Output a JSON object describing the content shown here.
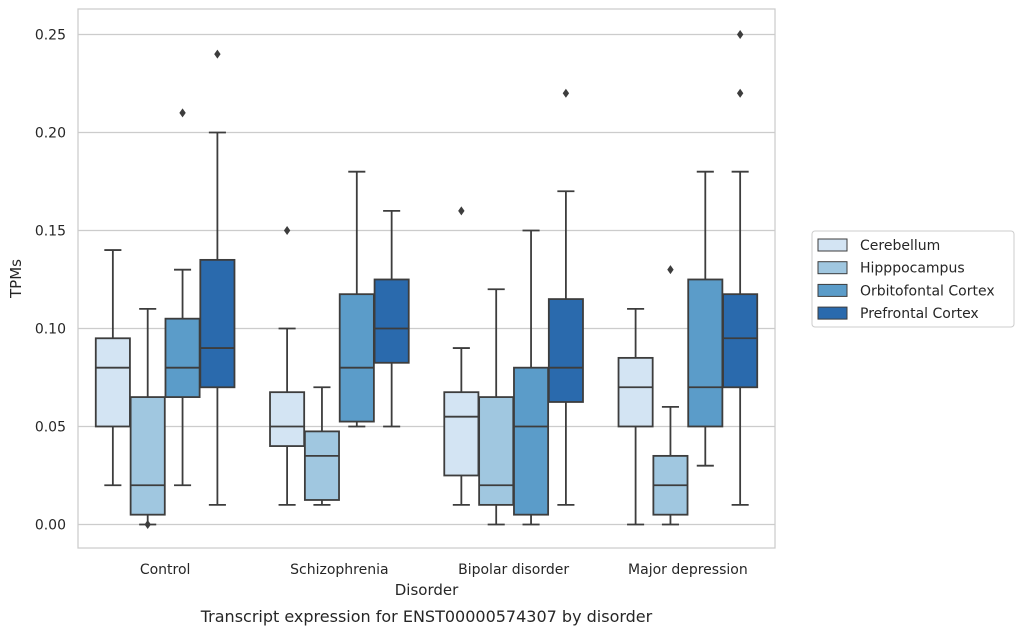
{
  "chart_data": {
    "type": "box",
    "caption": "Transcript expression for ENST00000574307 by disorder",
    "xlabel": "Disorder",
    "ylabel": "TPMs",
    "ylim": [
      -0.012,
      0.263
    ],
    "yticks": [
      0.0,
      0.05,
      0.1,
      0.15,
      0.2,
      0.25
    ],
    "ytick_labels": [
      "0.00",
      "0.05",
      "0.10",
      "0.15",
      "0.20",
      "0.25"
    ],
    "grid": "horizontal",
    "legend_position": "right",
    "categories": [
      "Control",
      "Schizophrenia",
      "Bipolar disorder",
      "Major depression"
    ],
    "series": [
      {
        "name": "Cerebellum",
        "color": "#d3e4f3",
        "boxes": [
          {
            "whislo": 0.02,
            "q1": 0.05,
            "med": 0.08,
            "q3": 0.095,
            "whishi": 0.14,
            "fliers": []
          },
          {
            "whislo": 0.01,
            "q1": 0.04,
            "med": 0.05,
            "q3": 0.0675,
            "whishi": 0.1,
            "fliers": [
              0.15
            ]
          },
          {
            "whislo": 0.01,
            "q1": 0.025,
            "med": 0.055,
            "q3": 0.0675,
            "whishi": 0.09,
            "fliers": [
              0.16
            ]
          },
          {
            "whislo": 0.0,
            "q1": 0.05,
            "med": 0.07,
            "q3": 0.085,
            "whishi": 0.11,
            "fliers": []
          }
        ]
      },
      {
        "name": "Hipppocampus",
        "color": "#a0c7e0",
        "boxes": [
          {
            "whislo": 0.0,
            "q1": 0.005,
            "med": 0.02,
            "q3": 0.065,
            "whishi": 0.11,
            "fliers": [
              0.0
            ]
          },
          {
            "whislo": 0.01,
            "q1": 0.0125,
            "med": 0.035,
            "q3": 0.0475,
            "whishi": 0.07,
            "fliers": []
          },
          {
            "whislo": 0.0,
            "q1": 0.01,
            "med": 0.02,
            "q3": 0.065,
            "whishi": 0.12,
            "fliers": []
          },
          {
            "whislo": 0.0,
            "q1": 0.005,
            "med": 0.02,
            "q3": 0.035,
            "whishi": 0.06,
            "fliers": [
              0.13
            ]
          }
        ]
      },
      {
        "name": "Orbitofontal Cortex",
        "color": "#5b9cc9",
        "boxes": [
          {
            "whislo": 0.02,
            "q1": 0.065,
            "med": 0.08,
            "q3": 0.105,
            "whishi": 0.13,
            "fliers": [
              0.21
            ]
          },
          {
            "whislo": 0.05,
            "q1": 0.0525,
            "med": 0.08,
            "q3": 0.1175,
            "whishi": 0.18,
            "fliers": []
          },
          {
            "whislo": 0.0,
            "q1": 0.005,
            "med": 0.05,
            "q3": 0.08,
            "whishi": 0.15,
            "fliers": []
          },
          {
            "whislo": 0.03,
            "q1": 0.05,
            "med": 0.07,
            "q3": 0.125,
            "whishi": 0.18,
            "fliers": []
          }
        ]
      },
      {
        "name": "Prefrontal Cortex",
        "color": "#2a6aad",
        "boxes": [
          {
            "whislo": 0.01,
            "q1": 0.07,
            "med": 0.09,
            "q3": 0.135,
            "whishi": 0.2,
            "fliers": [
              0.24
            ]
          },
          {
            "whislo": 0.05,
            "q1": 0.0825,
            "med": 0.1,
            "q3": 0.125,
            "whishi": 0.16,
            "fliers": []
          },
          {
            "whislo": 0.01,
            "q1": 0.0625,
            "med": 0.08,
            "q3": 0.115,
            "whishi": 0.17,
            "fliers": [
              0.22
            ]
          },
          {
            "whislo": 0.01,
            "q1": 0.07,
            "med": 0.095,
            "q3": 0.1175,
            "whishi": 0.18,
            "fliers": [
              0.25,
              0.22
            ]
          }
        ]
      }
    ]
  }
}
